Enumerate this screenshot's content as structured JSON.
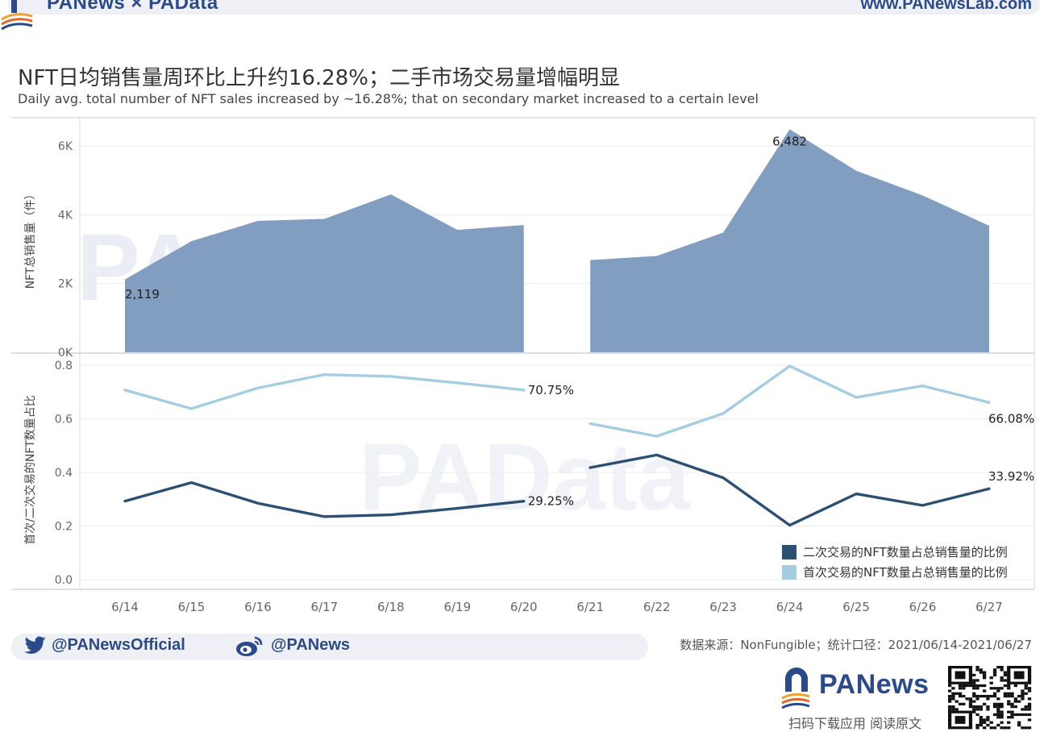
{
  "header": {
    "brand": "PANews × PAData",
    "url": "www.PANewsLab.com"
  },
  "title": "NFT日均销售量周环比上升约16.28%；二手市场交易量增幅明显",
  "subtitle": "Daily avg. total number of NFT sales increased by ~16.28%; that on secondary market increased to a certain level",
  "colors": {
    "area_fill": "#7d9bbf",
    "secondary_line": "#2c4f74",
    "primary_line": "#a5cde2",
    "brand": "#2a4a8a"
  },
  "chart_data": [
    {
      "type": "area",
      "ylabel": "NFT总销售量（件）",
      "ylim": [
        0,
        6500
      ],
      "y_ticks": [
        {
          "value": 0,
          "label": "0K"
        },
        {
          "value": 2000,
          "label": "2K"
        },
        {
          "value": 4000,
          "label": "4K"
        },
        {
          "value": 6000,
          "label": "6K"
        }
      ],
      "grid": true,
      "segments": [
        {
          "x": [
            "6/14",
            "6/15",
            "6/16",
            "6/17",
            "6/18",
            "6/19",
            "6/20"
          ],
          "values": [
            2119,
            3230,
            3820,
            3880,
            4590,
            3560,
            3700
          ]
        },
        {
          "x": [
            "6/21",
            "6/22",
            "6/23",
            "6/24",
            "6/25",
            "6/26",
            "6/27"
          ],
          "values": [
            2680,
            2800,
            3480,
            6482,
            5280,
            4560,
            3680
          ]
        }
      ],
      "annotations": [
        {
          "x": "6/14",
          "value": 2119,
          "label": "2,119"
        },
        {
          "x": "6/24",
          "value": 6482,
          "label": "6,482"
        }
      ]
    },
    {
      "type": "line",
      "ylabel": "首次/二次交易的NFT数量占比",
      "ylim": [
        0,
        0.8
      ],
      "y_ticks": [
        {
          "value": 0.0,
          "label": "0.0"
        },
        {
          "value": 0.2,
          "label": "0.2"
        },
        {
          "value": 0.4,
          "label": "0.4"
        },
        {
          "value": 0.6,
          "label": "0.6"
        },
        {
          "value": 0.8,
          "label": "0.8"
        }
      ],
      "grid": true,
      "legend_position": "bottom-right",
      "series": [
        {
          "name": "二次交易的NFT数量占总销售量的比例",
          "color": "#2c4f74",
          "segments": [
            {
              "x": [
                "6/14",
                "6/15",
                "6/16",
                "6/17",
                "6/18",
                "6/19",
                "6/20"
              ],
              "values": [
                0.293,
                0.362,
                0.285,
                0.235,
                0.242,
                0.266,
                0.2925
              ]
            },
            {
              "x": [
                "6/21",
                "6/22",
                "6/23",
                "6/24",
                "6/25",
                "6/26",
                "6/27"
              ],
              "values": [
                0.418,
                0.465,
                0.38,
                0.203,
                0.32,
                0.277,
                0.3392
              ]
            }
          ],
          "annotations": [
            {
              "x": "6/20",
              "value": 0.2925,
              "label": "29.25%"
            },
            {
              "x": "6/27",
              "value": 0.3392,
              "label": "33.92%"
            }
          ]
        },
        {
          "name": "首次交易的NFT数量占总销售量的比例",
          "color": "#a5cde2",
          "segments": [
            {
              "x": [
                "6/14",
                "6/15",
                "6/16",
                "6/17",
                "6/18",
                "6/19",
                "6/20"
              ],
              "values": [
                0.707,
                0.638,
                0.715,
                0.765,
                0.758,
                0.734,
                0.7075
              ]
            },
            {
              "x": [
                "6/21",
                "6/22",
                "6/23",
                "6/24",
                "6/25",
                "6/26",
                "6/27"
              ],
              "values": [
                0.582,
                0.535,
                0.62,
                0.797,
                0.68,
                0.723,
                0.6608
              ]
            }
          ],
          "annotations": [
            {
              "x": "6/20",
              "value": 0.7075,
              "label": "70.75%"
            },
            {
              "x": "6/27",
              "value": 0.6608,
              "label": "66.08%"
            }
          ]
        }
      ]
    }
  ],
  "x_categories": [
    "6/14",
    "6/15",
    "6/16",
    "6/17",
    "6/18",
    "6/19",
    "6/20",
    "6/21",
    "6/22",
    "6/23",
    "6/24",
    "6/25",
    "6/26",
    "6/27"
  ],
  "legend": {
    "secondary": "二次交易的NFT数量占总销售量的比例",
    "primary": "首次交易的NFT数量占总销售量的比例"
  },
  "footer": {
    "twitter": "@PANewsOfficial",
    "weibo": "@PANews",
    "source": "数据来源：NonFungible；统计口径：2021/06/14-2021/06/27",
    "brand_name": "PANews",
    "download": "扫码下载应用  阅读原文"
  },
  "icons": [
    "twitter-icon",
    "weibo-icon",
    "panews-logo-icon",
    "qr-code-icon"
  ]
}
